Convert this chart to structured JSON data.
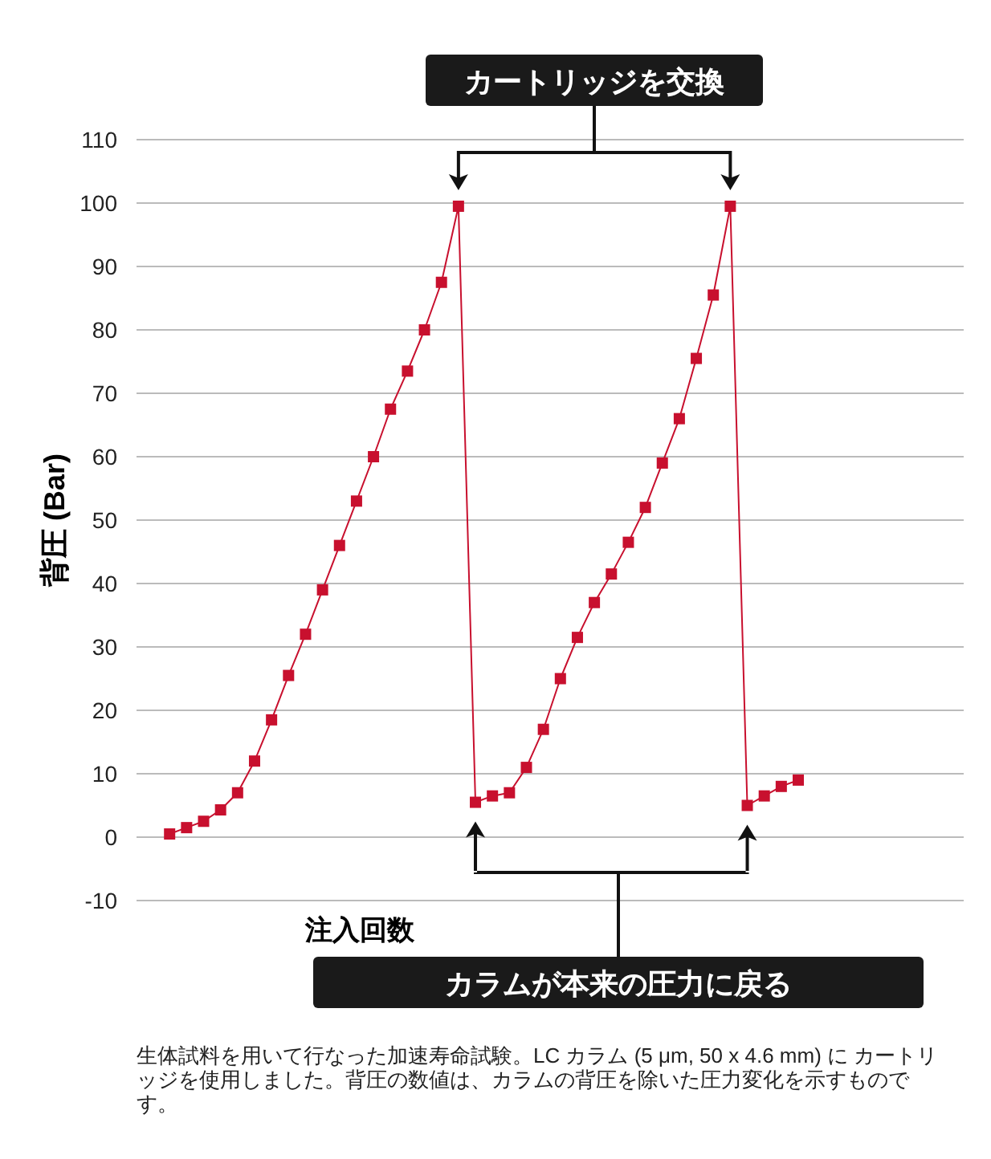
{
  "chart_data": {
    "type": "line",
    "xlabel": "注入回数",
    "ylabel": "背圧 (Bar)",
    "categories": [
      null,
      null,
      null,
      null,
      null,
      null,
      null,
      null,
      null,
      null,
      null,
      null,
      null,
      null,
      null,
      null,
      null,
      null,
      null,
      null,
      null,
      null,
      null,
      null,
      null,
      null,
      null,
      null,
      null,
      null,
      null,
      null,
      null,
      null,
      null,
      null,
      null,
      null
    ],
    "series": [
      {
        "color": "#c8102e",
        "values": [
          0.5,
          1.5,
          2.5,
          4.3,
          7,
          12,
          18.5,
          25.5,
          32,
          39,
          46,
          53,
          60,
          67.5,
          73.5,
          80,
          87.5,
          99.5,
          5.5,
          6.5,
          7,
          11,
          17,
          25,
          31.5,
          37,
          41.5,
          46.5,
          52,
          59,
          66,
          75.5,
          85.5,
          99.5,
          5,
          6.5,
          8,
          9
        ]
      }
    ],
    "ylim": [
      -10,
      110
    ],
    "yticks": [
      -10,
      0,
      10,
      20,
      30,
      40,
      50,
      60,
      70,
      80,
      90,
      100,
      110
    ],
    "grid": "y",
    "marker": "square",
    "line_style": "solid",
    "annotations": [
      "カートリッジを交換",
      "カラムが本来の圧力に戻る",
      "生体試料を用いて行なった加速寿命試験。LC カラム (5 μm, 50 x 4.6 mm) に カートリッジを使用しました。背圧の数値は、カラムの背圧を除いた圧力変化を示すものです。"
    ]
  }
}
